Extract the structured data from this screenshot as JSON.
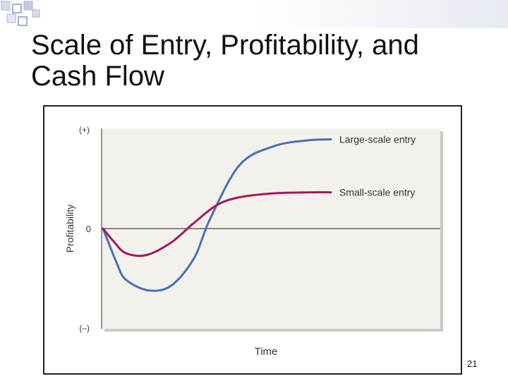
{
  "slide": {
    "title_line1": "Scale of Entry, Profitability, and",
    "title_line2": "Cash Flow",
    "page_number": "21",
    "accent_color": "#3a5aa0"
  },
  "chart_data": {
    "type": "line",
    "title": "",
    "xlabel": "Time",
    "ylabel": "Profitability",
    "y_tick_labels": [
      "(+)",
      "0",
      "(–)"
    ],
    "ylim": [
      -1,
      1
    ],
    "xlim": [
      0,
      1
    ],
    "grid": false,
    "legend": "inline labels at right end of each curve",
    "series": [
      {
        "name": "Large-scale entry",
        "color": "#4a6fb0",
        "x": [
          0,
          0.06,
          0.1,
          0.2,
          0.3,
          0.4,
          0.47,
          0.6,
          0.75,
          0.9,
          1.0
        ],
        "y": [
          0,
          -0.35,
          -0.52,
          -0.63,
          -0.58,
          -0.3,
          0.1,
          0.65,
          0.84,
          0.9,
          0.91
        ]
      },
      {
        "name": "Small-scale entry",
        "color": "#a3195b",
        "x": [
          0,
          0.05,
          0.1,
          0.19,
          0.3,
          0.4,
          0.5,
          0.6,
          0.75,
          0.9,
          1.0
        ],
        "y": [
          0,
          -0.14,
          -0.25,
          -0.27,
          -0.14,
          0.06,
          0.24,
          0.32,
          0.36,
          0.37,
          0.37
        ]
      }
    ]
  }
}
